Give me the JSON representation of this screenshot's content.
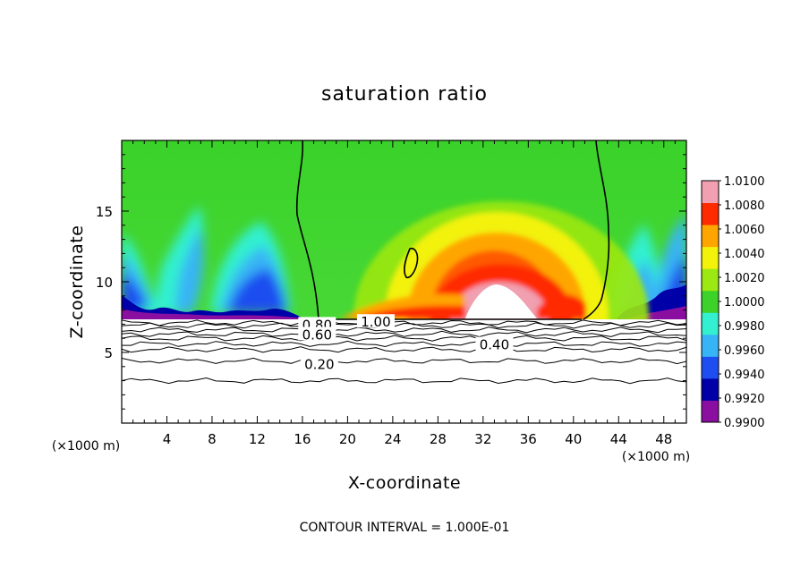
{
  "chart_data": {
    "type": "heatmap",
    "title": "saturation ratio",
    "xlabel": "X-coordinate",
    "ylabel": "Z-coordinate",
    "x_unit": "(×1000 m)",
    "x_unit_right": "(×1000 m)",
    "xlim": [
      0,
      50
    ],
    "ylim": [
      0,
      20
    ],
    "x_ticks": [
      4,
      8,
      12,
      16,
      20,
      24,
      28,
      32,
      36,
      40,
      44,
      48
    ],
    "y_ticks": [
      5,
      10,
      15
    ],
    "footer": "CONTOUR INTERVAL = 1.000E-01",
    "colorbar": {
      "levels": [
        "1.0100",
        "1.0080",
        "1.0060",
        "1.0040",
        "1.0020",
        "1.0000",
        "0.9980",
        "0.9960",
        "0.9940",
        "0.9920",
        "0.9900"
      ],
      "colors": [
        "#8a0fa0",
        "#0000a8",
        "#1e4ef0",
        "#37b4f5",
        "#33f0d0",
        "#3cd22a",
        "#9be812",
        "#f2f20a",
        "#ffa500",
        "#ff2a00",
        "#f0a0b0"
      ]
    },
    "contour_labels": [
      {
        "text": "0.80",
        "x": 17.3,
        "z": 7.0
      },
      {
        "text": "1.00",
        "x": 22.5,
        "z": 7.2
      },
      {
        "text": "0.60",
        "x": 17.3,
        "z": 6.3
      },
      {
        "text": "0.40",
        "x": 33.0,
        "z": 5.6
      },
      {
        "text": "0.20",
        "x": 17.5,
        "z": 4.2
      }
    ],
    "contour_lines_z": [
      3.0,
      4.4,
      5.2,
      5.6,
      6.0,
      6.3,
      6.6,
      6.9,
      7.1
    ]
  }
}
